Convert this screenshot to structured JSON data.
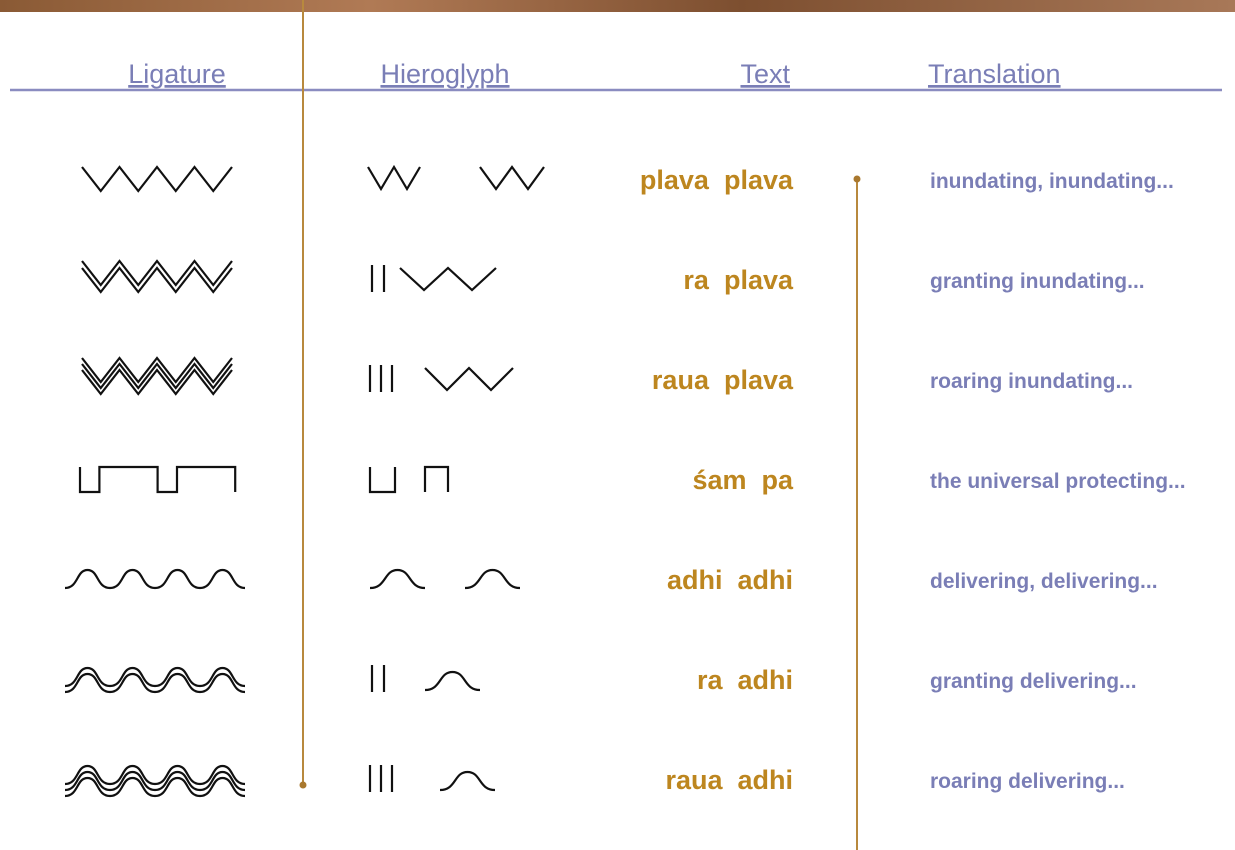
{
  "header": {
    "columns": [
      "Ligature",
      "Hieroglyph",
      "Text",
      "Translation"
    ]
  },
  "rows": [
    {
      "text": "plava  plava",
      "translation": "inundating, inundating..."
    },
    {
      "text": "ra  plava",
      "translation": "granting inundating..."
    },
    {
      "text": "raua  plava",
      "translation": "roaring inundating..."
    },
    {
      "text": "śam  pa",
      "translation": "the universal protecting..."
    },
    {
      "text": "adhi  adhi",
      "translation": "delivering, delivering..."
    },
    {
      "text": "ra  adhi",
      "translation": "granting delivering..."
    },
    {
      "text": "raua  adhi",
      "translation": "roaring delivering..."
    }
  ]
}
